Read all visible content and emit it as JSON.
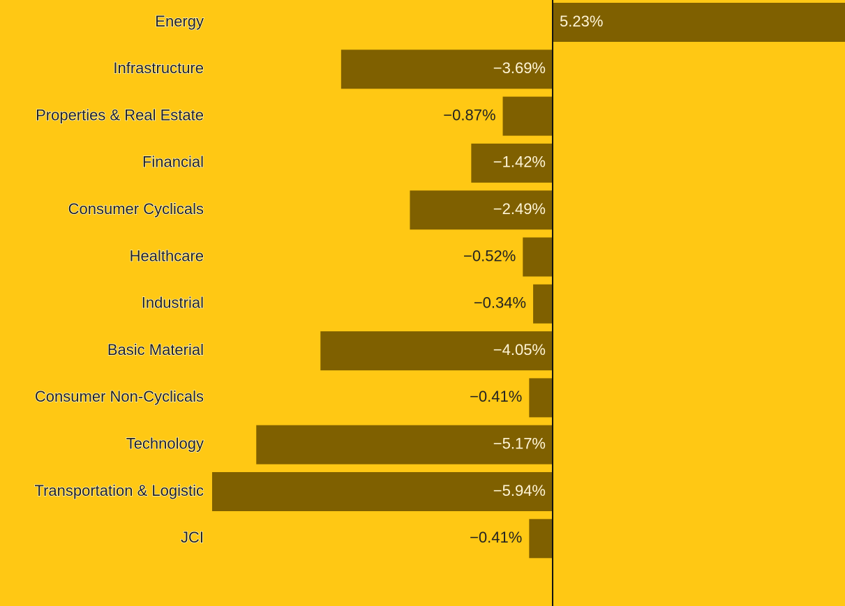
{
  "chart_data": {
    "type": "bar",
    "orientation": "horizontal",
    "categories": [
      "Energy",
      "Infrastructure",
      "Properties & Real Estate",
      "Financial",
      "Consumer Cyclicals",
      "Healthcare",
      "Industrial",
      "Basic Material",
      "Consumer Non-Cyclicals",
      "Technology",
      "Transportation & Logistic",
      "JCI"
    ],
    "values": [
      5.23,
      -3.69,
      -0.87,
      -1.42,
      -2.49,
      -0.52,
      -0.34,
      -4.05,
      -0.41,
      -5.17,
      -5.94,
      -0.41
    ],
    "value_labels": [
      "5.23%",
      "−3.69%",
      "−0.87%",
      "−1.42%",
      "−2.49%",
      "−0.52%",
      "−0.34%",
      "−4.05%",
      "−0.41%",
      "−5.17%",
      "−5.94%",
      "−0.41%"
    ],
    "color": "#7f6000",
    "background": "#ffc814"
  }
}
